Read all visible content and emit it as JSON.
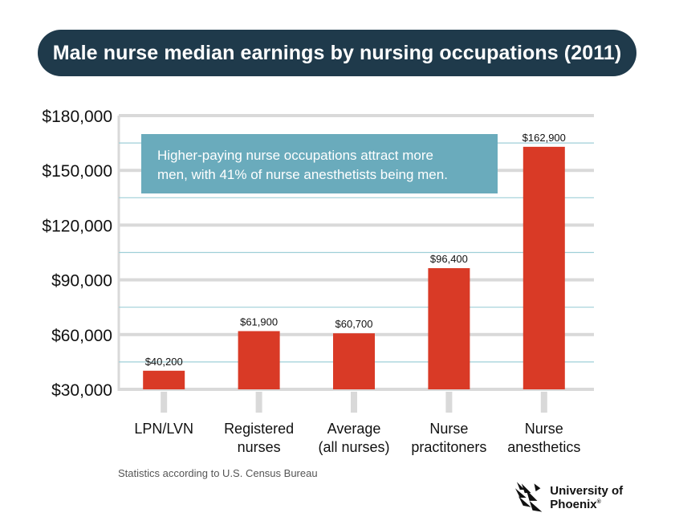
{
  "title": "Male nurse median earnings by nursing occupations (2011)",
  "chart_data": {
    "type": "bar",
    "categories": [
      [
        "LPN/LVN"
      ],
      [
        "Registered",
        "nurses"
      ],
      [
        "Average",
        "(all nurses)"
      ],
      [
        "Nurse",
        "practitoners"
      ],
      [
        "Nurse",
        "anesthetics"
      ]
    ],
    "values": [
      40200,
      61900,
      60700,
      96400,
      162900
    ],
    "value_labels": [
      "$40,200",
      "$61,900",
      "$60,700",
      "$96,400",
      "$162,900"
    ],
    "yticks": [
      30000,
      60000,
      90000,
      120000,
      150000,
      180000
    ],
    "ytick_labels": [
      "$30,000",
      "$60,000",
      "$90,000",
      "$120,000",
      "$150,000",
      "$180,000"
    ],
    "ylim": [
      30000,
      180000
    ],
    "grid": true,
    "xlabel": "",
    "ylabel": ""
  },
  "annotation": {
    "lines": [
      "Higher-paying nurse occupations attract more",
      "men, with 41% of nurse anesthetists being men."
    ]
  },
  "source_note": "Statistics according to U.S. Census Bureau",
  "brand": {
    "name": "University of Phoenix",
    "reg": "®",
    "logo_icon": "phoenix-bird-icon"
  },
  "colors": {
    "bar": "#d93a26",
    "title_bg": "#1f3a4b",
    "annotation_bg": "#6aabbc",
    "grid_major": "#d9d9d9",
    "grid_minor": "#9fcfd8"
  }
}
